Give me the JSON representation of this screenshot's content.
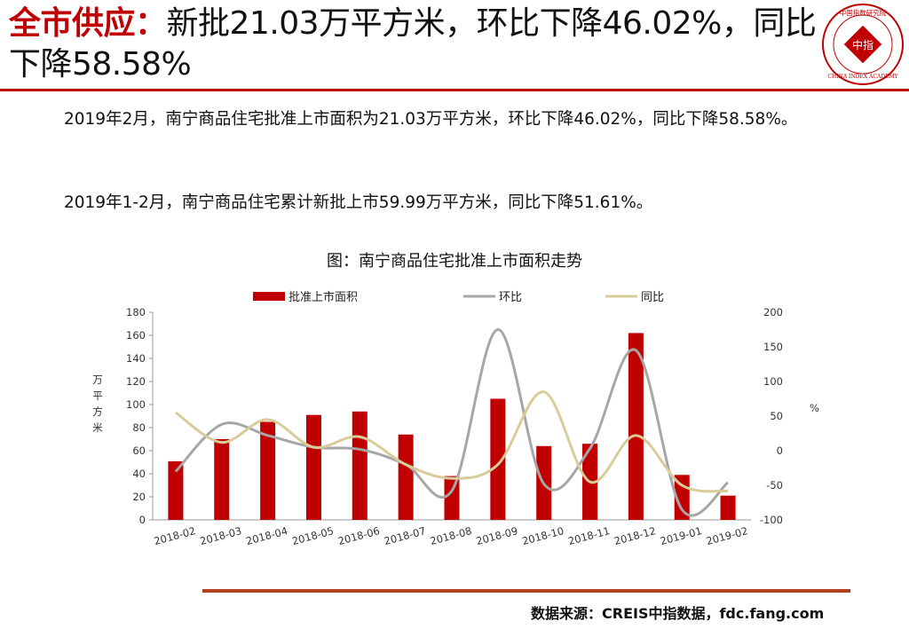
{
  "header": {
    "title_lead": "全市供应：",
    "title_rest": "新批21.03万平方米，环比下降46.02%，同比下降58.58%"
  },
  "logo": {
    "text_top": "中国指数研究院",
    "text_center": "中指",
    "text_bottom": "CHINA INDEX ACADEMY"
  },
  "paragraphs": [
    "2019年2月，南宁商品住宅批准上市面积为21.03万平方米，环比下降46.02%，同比下降58.58%。",
    "2019年1-2月，南宁商品住宅累计新批上市59.99万平方米，同比下降51.61%。"
  ],
  "figure_caption": "图：南宁商品住宅批准上市面积走势",
  "source": "数据来源：CREIS中指数据，fdc.fang.com",
  "colors": {
    "accent": "#c00000",
    "bar": "#c00000",
    "mom": "#a6a6a6",
    "yoy": "#d9cc99",
    "rule": "#b0421f"
  },
  "chart_data": {
    "type": "bar",
    "categories": [
      "2018-02",
      "2018-03",
      "2018-04",
      "2018-05",
      "2018-06",
      "2018-07",
      "2018-08",
      "2018-09",
      "2018-10",
      "2018-11",
      "2018-12",
      "2019-01",
      "2019-02"
    ],
    "series": [
      {
        "name": "批准上市面积",
        "type": "bar",
        "axis": "left",
        "values": [
          50.8,
          70,
          85,
          91,
          94,
          74,
          38,
          105,
          64,
          66,
          162,
          39,
          21.03
        ]
      },
      {
        "name": "环比",
        "type": "line",
        "axis": "right",
        "values": [
          -30,
          38,
          22,
          5,
          2,
          -20,
          -58,
          175,
          -48,
          3,
          145,
          -85,
          -46.02
        ]
      },
      {
        "name": "同比",
        "type": "line",
        "axis": "right",
        "values": [
          55,
          12,
          45,
          5,
          20,
          -20,
          -40,
          -20,
          85,
          -45,
          22,
          -50,
          -58.58
        ]
      }
    ],
    "ylabel": "万平方米",
    "y2label": "%",
    "ylim": [
      0,
      180
    ],
    "yticks": [
      0,
      20,
      40,
      60,
      80,
      100,
      120,
      140,
      160,
      180
    ],
    "y2lim": [
      -100,
      200
    ],
    "y2ticks": [
      -100,
      -50,
      0,
      50,
      100,
      150,
      200
    ],
    "legend_position": "top",
    "grid": false
  }
}
